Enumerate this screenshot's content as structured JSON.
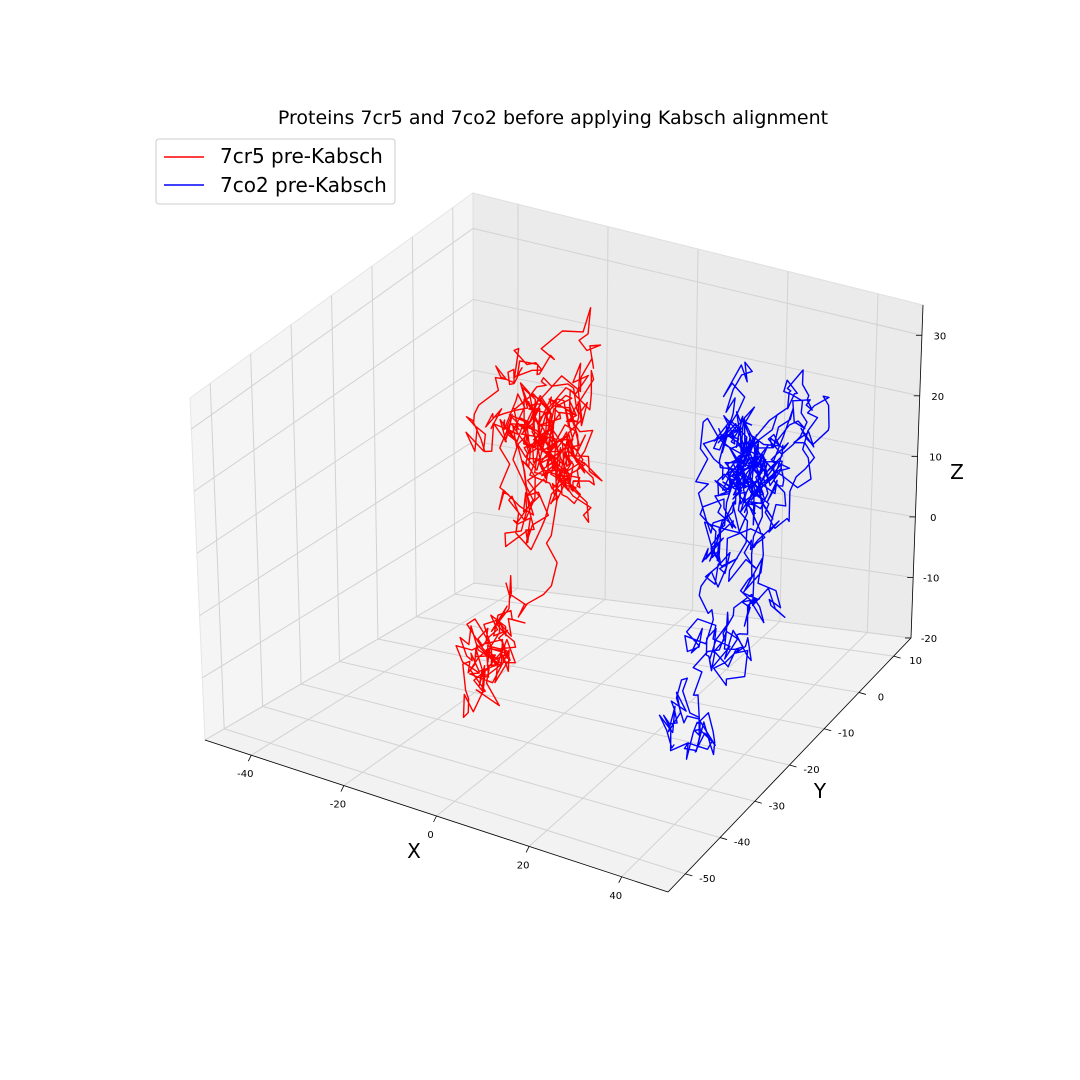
{
  "chart_data": {
    "type": "line",
    "projection": "3d",
    "title": "Proteins 7cr5 and 7co2 before applying Kabsch alignment",
    "xlabel": "X",
    "ylabel": "Y",
    "zlabel": "Z",
    "xlim": [
      -50,
      50
    ],
    "ylim": [
      -55,
      15
    ],
    "zlim": [
      -20,
      35
    ],
    "x_ticks": [
      "-40",
      "-20",
      "0",
      "20",
      "40"
    ],
    "y_ticks": [
      "-50",
      "-40",
      "-30",
      "-20",
      "-10",
      "0",
      "10"
    ],
    "z_ticks": [
      "-20",
      "-10",
      "0",
      "10",
      "20",
      "30"
    ],
    "grid": true,
    "legend_position": "top-left",
    "series": [
      {
        "name": "7cr5 pre-Kabsch",
        "color": "#ff0000",
        "center": [
          -22,
          2,
          12
        ],
        "spread": [
          6,
          6,
          8
        ],
        "tail": [
          -20,
          -12,
          -16
        ],
        "n_points": 600,
        "seed": 7
      },
      {
        "name": "7co2 pre-Kabsch",
        "color": "#0000ff",
        "center": [
          20,
          6,
          8
        ],
        "spread": [
          6,
          6,
          8
        ],
        "tail": [
          24,
          -14,
          -14
        ],
        "n_points": 600,
        "seed": 13
      }
    ]
  }
}
